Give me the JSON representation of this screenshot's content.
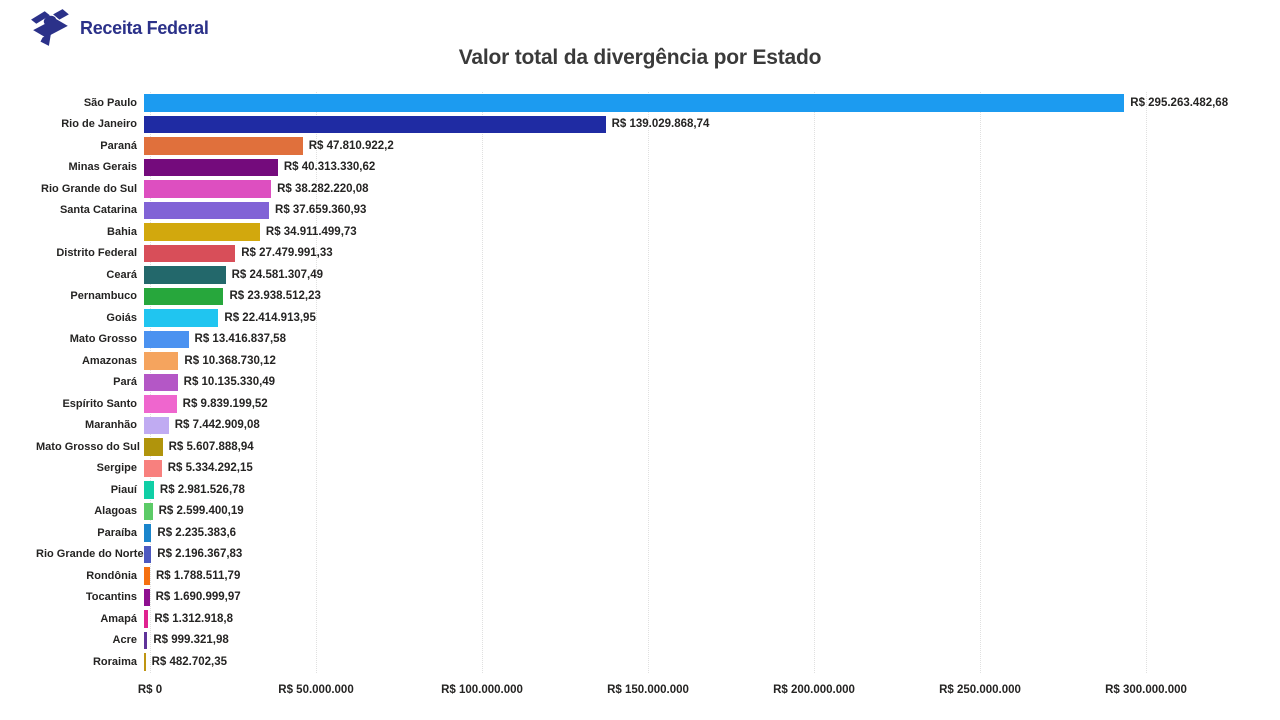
{
  "header": {
    "logo_text": "Receita Federal"
  },
  "chart_data": {
    "type": "bar",
    "orientation": "horizontal",
    "title": "Valor total da divergência por Estado",
    "xlabel": "",
    "ylabel": "",
    "xlim": [
      0,
      300000000
    ],
    "grid": "vertical-dotted",
    "x_ticks": [
      "R$ 0",
      "R$ 50.000.000",
      "R$ 100.000.000",
      "R$ 150.000.000",
      "R$ 200.000.000",
      "R$ 250.000.000",
      "R$ 300.000.000"
    ],
    "categories": [
      "São Paulo",
      "Rio de Janeiro",
      "Paraná",
      "Minas Gerais",
      "Rio Grande do Sul",
      "Santa Catarina",
      "Bahia",
      "Distrito Federal",
      "Ceará",
      "Pernambuco",
      "Goiás",
      "Mato Grosso",
      "Amazonas",
      "Pará",
      "Espírito Santo",
      "Maranhão",
      "Mato Grosso do Sul",
      "Sergipe",
      "Piauí",
      "Alagoas",
      "Paraíba",
      "Rio Grande do Norte",
      "Rondônia",
      "Tocantins",
      "Amapá",
      "Acre",
      "Roraima"
    ],
    "values": [
      295263482.68,
      139029868.74,
      47810922.2,
      40313330.62,
      38282220.08,
      37659360.93,
      34911499.73,
      27479991.33,
      24581307.49,
      23938512.23,
      22414913.95,
      13416837.58,
      10368730.12,
      10135330.49,
      9839199.52,
      7442909.08,
      5607888.94,
      5334292.15,
      2981526.78,
      2599400.19,
      2235383.6,
      2196367.83,
      1788511.79,
      1690999.97,
      1312918.8,
      999321.98,
      482702.35
    ],
    "value_labels": [
      "R$ 295.263.482,68",
      "R$ 139.029.868,74",
      "R$ 47.810.922,2",
      "R$ 40.313.330,62",
      "R$ 38.282.220,08",
      "R$ 37.659.360,93",
      "R$ 34.911.499,73",
      "R$ 27.479.991,33",
      "R$ 24.581.307,49",
      "R$ 23.938.512,23",
      "R$ 22.414.913,95",
      "R$ 13.416.837,58",
      "R$ 10.368.730,12",
      "R$ 10.135.330,49",
      "R$ 9.839.199,52",
      "R$ 7.442.909,08",
      "R$ 5.607.888,94",
      "R$ 5.334.292,15",
      "R$ 2.981.526,78",
      "R$ 2.599.400,19",
      "R$ 2.235.383,6",
      "R$ 2.196.367,83",
      "R$ 1.788.511,79",
      "R$ 1.690.999,97",
      "R$ 1.312.918,8",
      "R$ 999.321,98",
      "R$ 482.702,35"
    ],
    "colors": [
      "#1C9BF0",
      "#1F2BA3",
      "#E0703C",
      "#740B7C",
      "#DD4FC0",
      "#8163D6",
      "#D2A80D",
      "#D84E59",
      "#23686B",
      "#27A73C",
      "#20C5F0",
      "#4B92F0",
      "#F5A45E",
      "#B457C6",
      "#EF66CE",
      "#C0ABF2",
      "#B0940C",
      "#F8807E",
      "#10CFA6",
      "#5CCB67",
      "#1A85CC",
      "#4D59C0",
      "#F57010",
      "#8E1090",
      "#E02390",
      "#5F3399",
      "#BF9512"
    ],
    "legend": "none",
    "accent_colors": {
      "logo_navy": "#2B3189",
      "label_dark": "#252423",
      "gridline": "#e0e0e0"
    }
  }
}
